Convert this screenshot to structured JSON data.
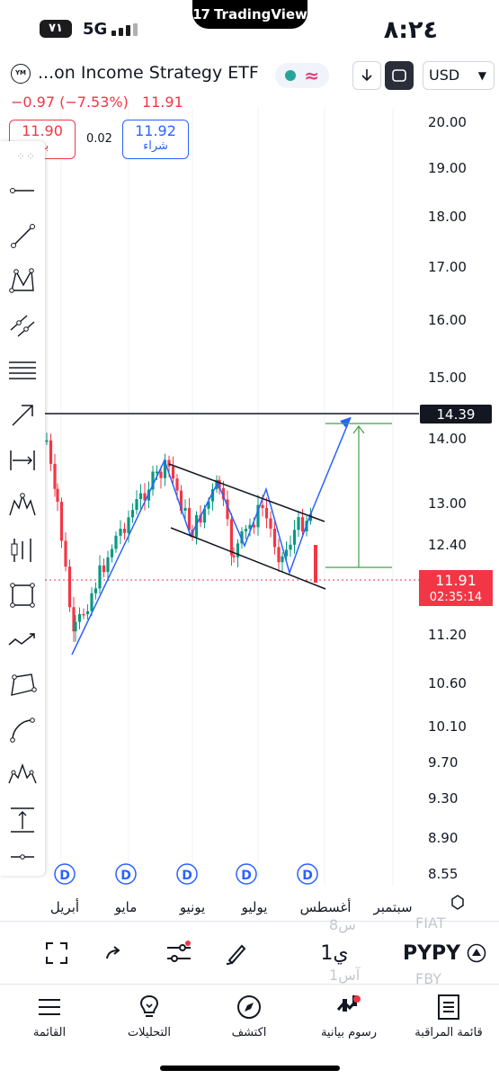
{
  "statusbar": {
    "time": "٨:٢٤",
    "app_pill": "TradingView",
    "battery": "٧١",
    "network": "5G"
  },
  "header": {
    "symbol_name": "...on Income Strategy ETF",
    "currency": "USD",
    "change": "−0.97 (−7.53%)",
    "last": "11.91"
  },
  "quotes": {
    "sell_value": "11.90",
    "sell_label": "بيع",
    "spread": "0.02",
    "buy_value": "11.92",
    "buy_label": "شراء"
  },
  "chart_data": {
    "type": "candlestick",
    "y_ticks": [
      "20.00",
      "19.00",
      "18.00",
      "17.00",
      "16.00",
      "15.00",
      "14.00",
      "13.00",
      "12.40",
      "11.20",
      "10.60",
      "10.10",
      "9.70",
      "9.30",
      "8.90",
      "8.55"
    ],
    "x_labels": [
      "أبريل",
      "مايو",
      "يونيو",
      "يوليو",
      "أغسطس",
      "سبتمبر"
    ],
    "horizontal_line": {
      "value": "14.39"
    },
    "last_price": {
      "value": "11.91",
      "countdown": "02:35:14"
    },
    "dividend_markers": [
      "D",
      "D",
      "D",
      "D",
      "D"
    ],
    "colors": {
      "up": "#089981",
      "down": "#f23645",
      "pattern": "#2962ff",
      "projection": "#43a047"
    }
  },
  "bottom_toolbar": {
    "ticker": "PYPY",
    "interval": "1ي",
    "ghost_1": "FIAT",
    "ghost_2": "8س",
    "ghost_3": "FBY",
    "ghost_4": "1آس"
  },
  "tabs": [
    {
      "label": "قائمة المراقبة",
      "icon": "watchlist-icon"
    },
    {
      "label": "رسوم بيانية",
      "icon": "charts-icon"
    },
    {
      "label": "اكتشف",
      "icon": "explore-icon"
    },
    {
      "label": "التحليلات",
      "icon": "ideas-icon"
    },
    {
      "label": "القائمة",
      "icon": "menu-icon"
    }
  ]
}
